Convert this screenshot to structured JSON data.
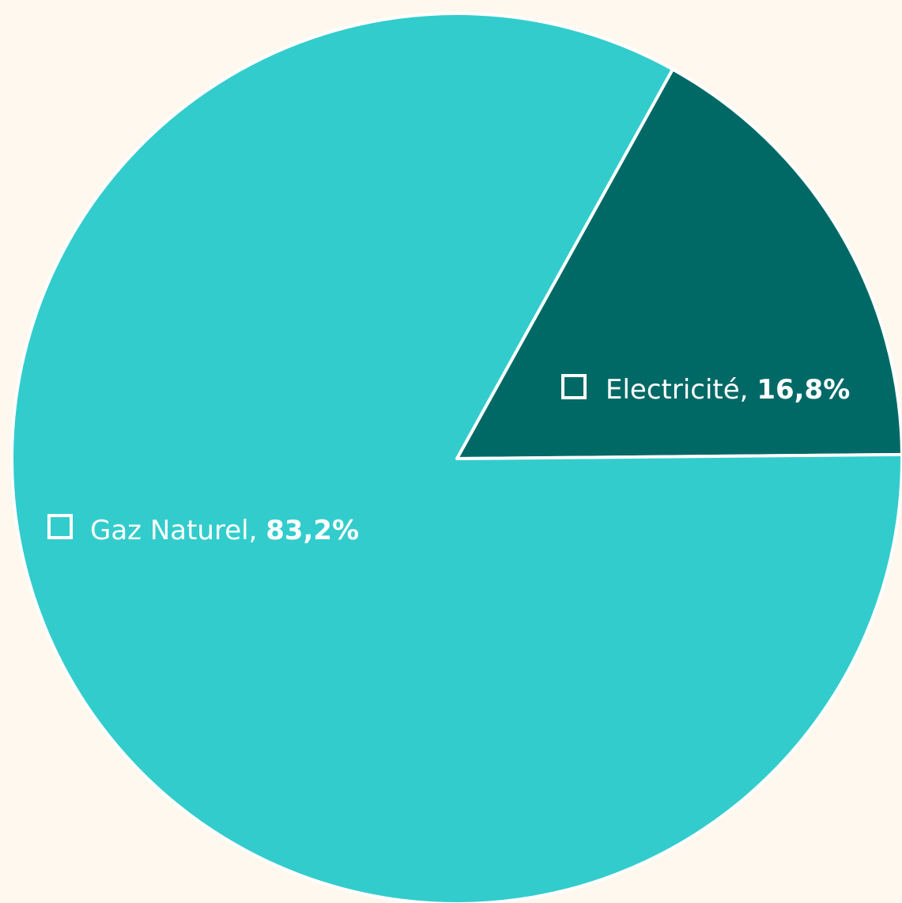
{
  "chart_data": {
    "type": "pie",
    "slices": [
      {
        "label": "Electricité",
        "value": 16.8,
        "value_label": "16,8%",
        "color": "#006966"
      },
      {
        "label": "Gaz Naturel",
        "value": 83.2,
        "value_label": "83,2%",
        "color": "#33cccc"
      }
    ],
    "background_color": "#fff8ef",
    "slice_border_color": "#ffffff",
    "legend": "none (labels on slices)"
  }
}
